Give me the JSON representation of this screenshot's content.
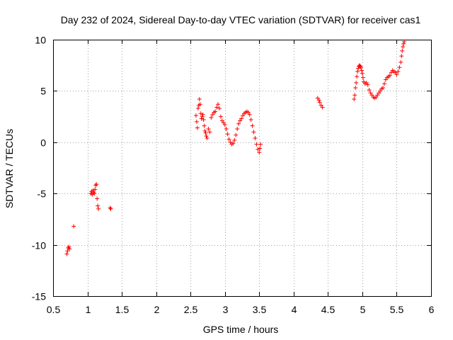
{
  "chart_data": {
    "type": "scatter",
    "title": "Day 232 of 2024, Sidereal Day-to-day VTEC variation (SDTVAR) for receiver cas1",
    "xlabel": "GPS time / hours",
    "ylabel": "SDTVAR / TECUs",
    "xlim": [
      0.5,
      6
    ],
    "ylim": [
      -15,
      10
    ],
    "xticks": [
      0.5,
      1,
      1.5,
      2,
      2.5,
      3,
      3.5,
      4,
      4.5,
      5,
      5.5,
      6
    ],
    "xtick_labels": [
      "0.5",
      "1",
      "1.5",
      "2",
      "2.5",
      "3",
      "3.5",
      "4",
      "4.5",
      "5",
      "5.5",
      "6"
    ],
    "yticks": [
      -15,
      -10,
      -5,
      0,
      5,
      10
    ],
    "ytick_labels": [
      "-15",
      "-10",
      "-5",
      "0",
      "5",
      "10"
    ],
    "grid": true,
    "marker": "+",
    "marker_color": "#ff0000",
    "series": [
      {
        "name": "SDTVAR",
        "points": [
          [
            0.7,
            -10.9
          ],
          [
            0.71,
            -10.6
          ],
          [
            0.72,
            -10.3
          ],
          [
            0.73,
            -10.2
          ],
          [
            0.74,
            -10.4
          ],
          [
            0.8,
            -8.2
          ],
          [
            1.05,
            -5.0
          ],
          [
            1.06,
            -4.8
          ],
          [
            1.07,
            -5.1
          ],
          [
            1.08,
            -4.7
          ],
          [
            1.09,
            -4.9
          ],
          [
            1.1,
            -5.0
          ],
          [
            1.11,
            -4.6
          ],
          [
            1.12,
            -4.2
          ],
          [
            1.13,
            -4.1
          ],
          [
            1.14,
            -5.5
          ],
          [
            1.15,
            -6.2
          ],
          [
            1.16,
            -6.5
          ],
          [
            1.33,
            -6.4
          ],
          [
            1.34,
            -6.5
          ],
          [
            2.58,
            2.6
          ],
          [
            2.59,
            2.0
          ],
          [
            2.6,
            1.4
          ],
          [
            2.61,
            3.3
          ],
          [
            2.62,
            3.6
          ],
          [
            2.63,
            4.2
          ],
          [
            2.64,
            3.7
          ],
          [
            2.65,
            2.8
          ],
          [
            2.66,
            2.3
          ],
          [
            2.67,
            2.5
          ],
          [
            2.68,
            2.7
          ],
          [
            2.69,
            2.2
          ],
          [
            2.7,
            1.6
          ],
          [
            2.71,
            1.1
          ],
          [
            2.72,
            0.9
          ],
          [
            2.73,
            0.6
          ],
          [
            2.74,
            0.4
          ],
          [
            2.76,
            1.3
          ],
          [
            2.78,
            1.0
          ],
          [
            2.8,
            2.4
          ],
          [
            2.82,
            2.7
          ],
          [
            2.84,
            2.9
          ],
          [
            2.86,
            3.0
          ],
          [
            2.88,
            3.4
          ],
          [
            2.9,
            3.7
          ],
          [
            2.92,
            3.3
          ],
          [
            2.94,
            2.5
          ],
          [
            2.96,
            2.1
          ],
          [
            2.98,
            1.9
          ],
          [
            3.0,
            1.7
          ],
          [
            3.02,
            1.3
          ],
          [
            3.04,
            0.8
          ],
          [
            3.06,
            0.3
          ],
          [
            3.08,
            0.0
          ],
          [
            3.1,
            -0.2
          ],
          [
            3.12,
            -0.1
          ],
          [
            3.14,
            0.2
          ],
          [
            3.16,
            0.7
          ],
          [
            3.18,
            1.3
          ],
          [
            3.2,
            1.8
          ],
          [
            3.22,
            2.1
          ],
          [
            3.24,
            2.3
          ],
          [
            3.26,
            2.6
          ],
          [
            3.28,
            2.8
          ],
          [
            3.3,
            2.9
          ],
          [
            3.32,
            3.0
          ],
          [
            3.34,
            2.9
          ],
          [
            3.36,
            2.7
          ],
          [
            3.38,
            2.2
          ],
          [
            3.4,
            1.6
          ],
          [
            3.42,
            1.0
          ],
          [
            3.44,
            0.4
          ],
          [
            3.46,
            -0.2
          ],
          [
            3.48,
            -0.7
          ],
          [
            3.5,
            -1.0
          ],
          [
            3.51,
            -0.6
          ],
          [
            3.52,
            -0.2
          ],
          [
            4.35,
            4.3
          ],
          [
            4.37,
            4.1
          ],
          [
            4.38,
            3.9
          ],
          [
            4.4,
            3.6
          ],
          [
            4.42,
            3.4
          ],
          [
            4.88,
            4.2
          ],
          [
            4.89,
            4.6
          ],
          [
            4.9,
            5.3
          ],
          [
            4.91,
            5.8
          ],
          [
            4.92,
            6.4
          ],
          [
            4.93,
            6.9
          ],
          [
            4.94,
            7.2
          ],
          [
            4.95,
            7.4
          ],
          [
            4.96,
            7.5
          ],
          [
            4.97,
            7.4
          ],
          [
            4.98,
            7.3
          ],
          [
            4.99,
            7.0
          ],
          [
            5.0,
            6.7
          ],
          [
            5.01,
            6.3
          ],
          [
            5.02,
            5.9
          ],
          [
            5.04,
            5.7
          ],
          [
            5.06,
            5.8
          ],
          [
            5.08,
            5.6
          ],
          [
            5.1,
            5.1
          ],
          [
            5.12,
            4.8
          ],
          [
            5.14,
            4.6
          ],
          [
            5.16,
            4.4
          ],
          [
            5.18,
            4.3
          ],
          [
            5.2,
            4.4
          ],
          [
            5.22,
            4.6
          ],
          [
            5.24,
            4.8
          ],
          [
            5.26,
            5.0
          ],
          [
            5.28,
            5.2
          ],
          [
            5.3,
            5.3
          ],
          [
            5.32,
            5.7
          ],
          [
            5.34,
            6.1
          ],
          [
            5.36,
            6.3
          ],
          [
            5.38,
            6.4
          ],
          [
            5.4,
            6.5
          ],
          [
            5.42,
            6.8
          ],
          [
            5.44,
            7.0
          ],
          [
            5.46,
            6.9
          ],
          [
            5.48,
            6.8
          ],
          [
            5.5,
            6.6
          ],
          [
            5.52,
            6.9
          ],
          [
            5.54,
            7.3
          ],
          [
            5.56,
            7.8
          ],
          [
            5.57,
            8.4
          ],
          [
            5.58,
            8.9
          ],
          [
            5.59,
            9.3
          ],
          [
            5.6,
            9.6
          ],
          [
            5.61,
            9.8
          ]
        ]
      }
    ]
  }
}
